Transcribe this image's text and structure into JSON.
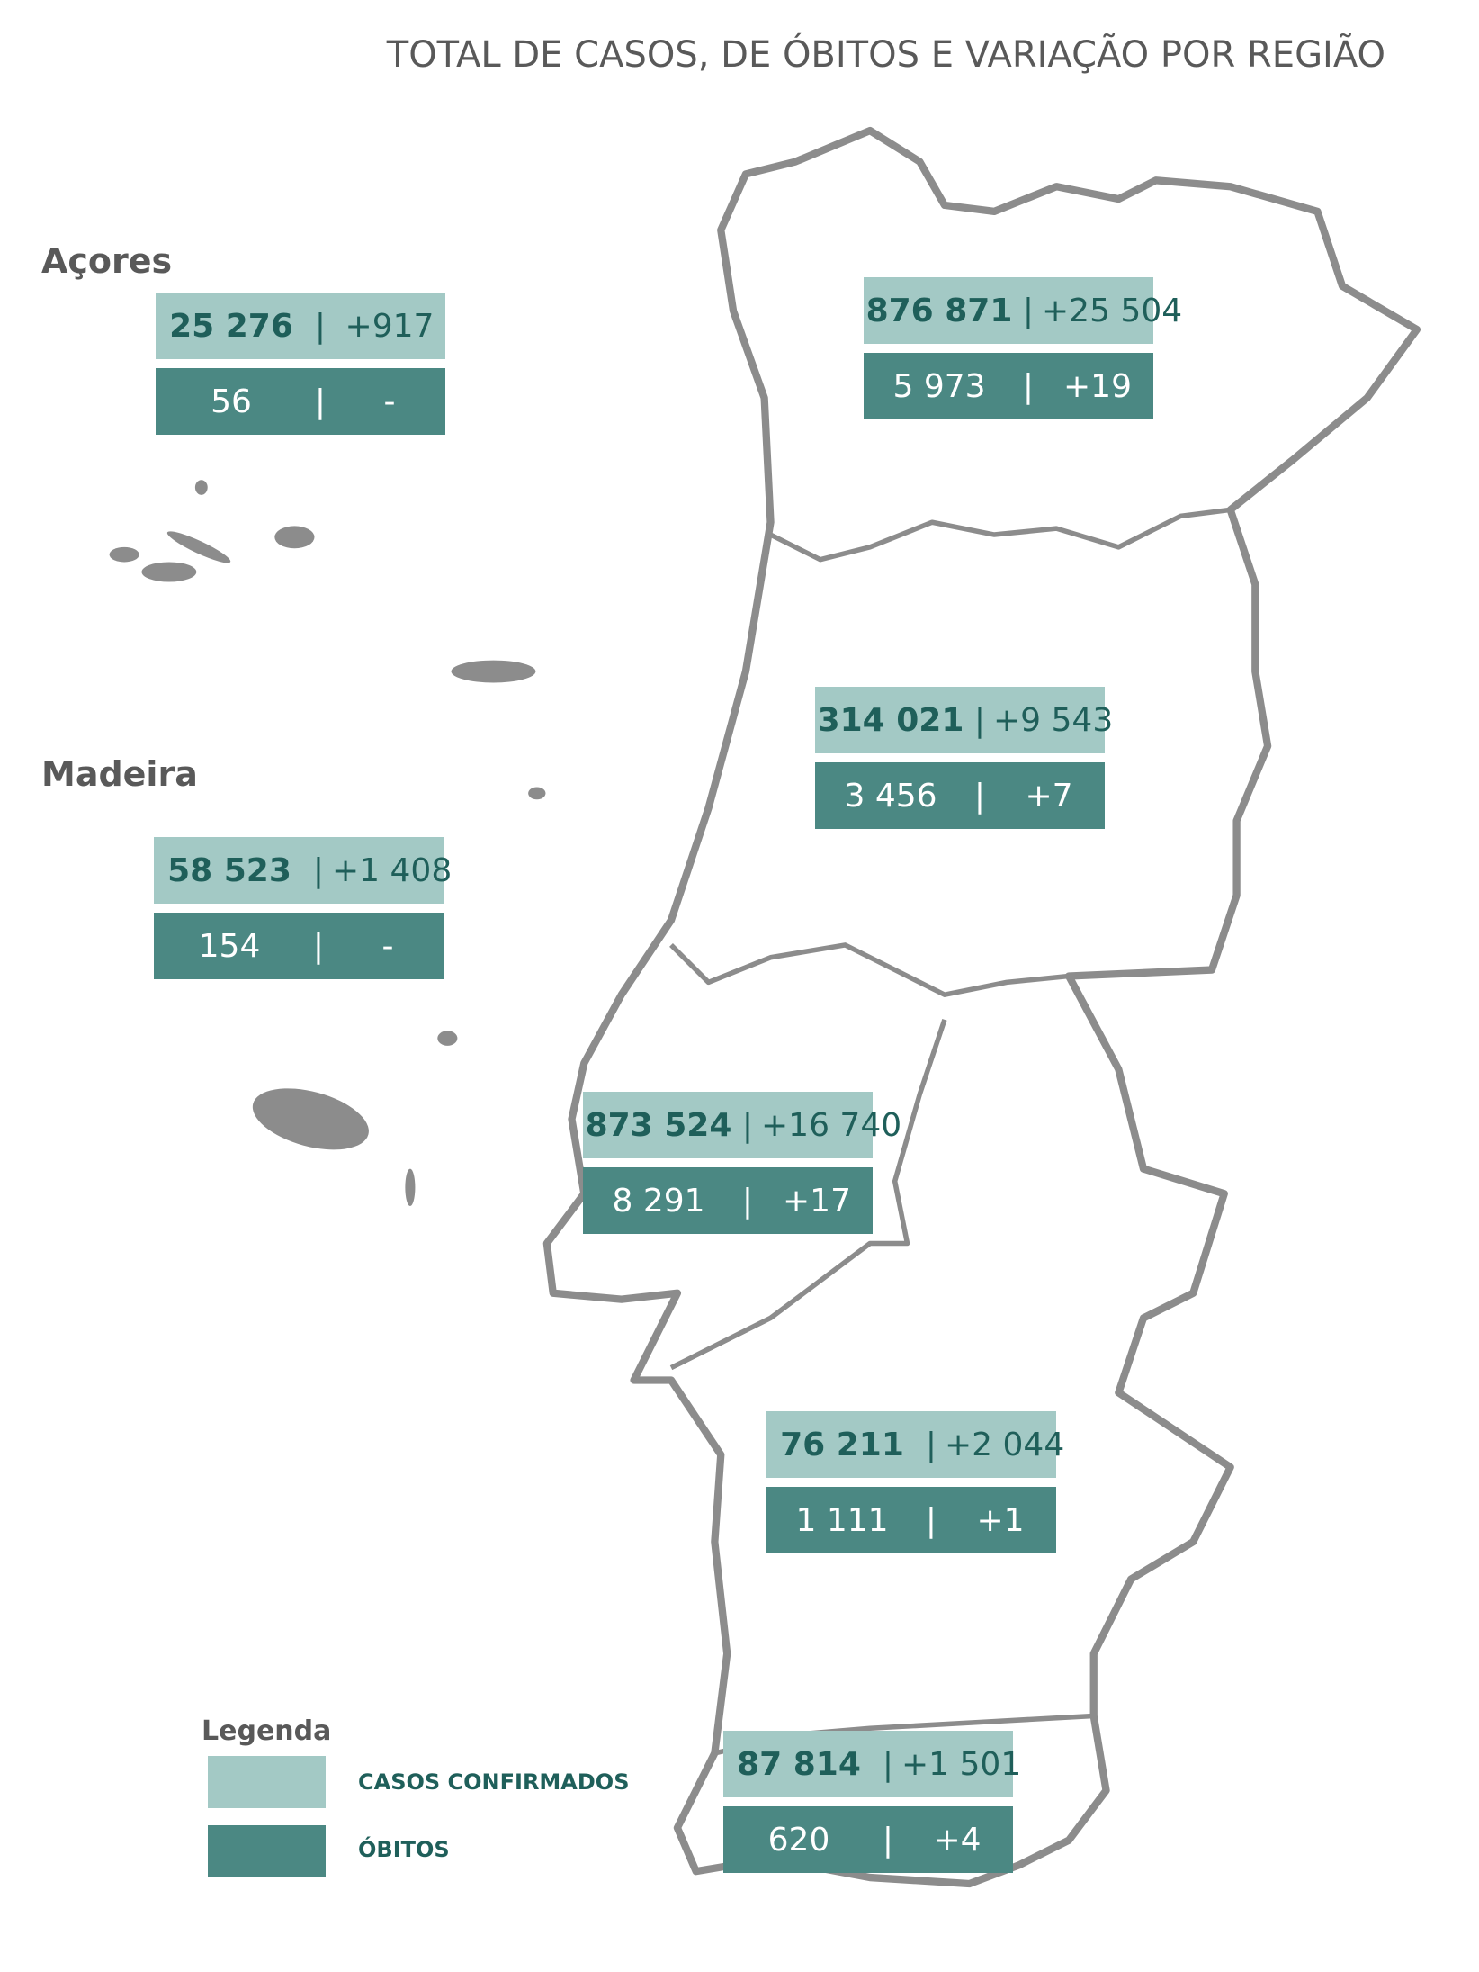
{
  "title": "TOTAL DE CASOS, DE ÓBITOS E VARIAÇÃO POR REGIÃO",
  "separator": "|",
  "regions": [
    {
      "name": "Açores",
      "cases": "25 276",
      "cases_change": "+917",
      "deaths": "56",
      "deaths_change": "-"
    },
    {
      "cases": "876 871",
      "cases_change": "+25 504",
      "deaths": "5 973",
      "deaths_change": "+19"
    },
    {
      "cases": "314 021",
      "cases_change": "+9 543",
      "deaths": "3 456",
      "deaths_change": "+7"
    },
    {
      "name": "Madeira",
      "cases": "58 523",
      "cases_change": "+1 408",
      "deaths": "154",
      "deaths_change": "-"
    },
    {
      "cases": "873 524",
      "cases_change": "+16 740",
      "deaths": "8 291",
      "deaths_change": "+17"
    },
    {
      "cases": "76 211",
      "cases_change": "+2 044",
      "deaths": "1 111",
      "deaths_change": "+1"
    },
    {
      "cases": "87 814",
      "cases_change": "+1 501",
      "deaths": "620",
      "deaths_change": "+4"
    }
  ],
  "legend": {
    "title": "Legenda",
    "items": [
      "CASOS CONFIRMADOS",
      "ÓBITOS"
    ]
  }
}
